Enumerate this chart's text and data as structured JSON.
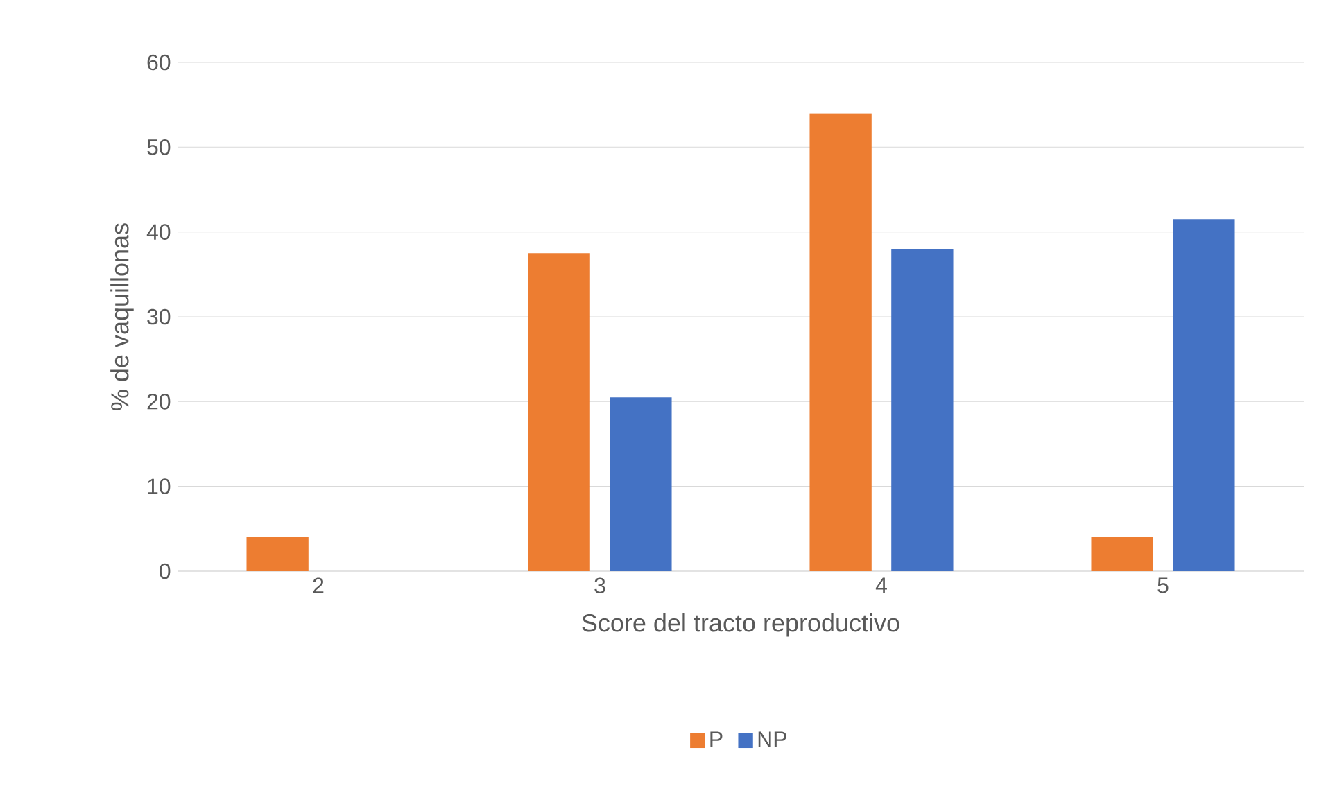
{
  "chart_data": {
    "type": "bar",
    "xlabel": "Score del tracto reproductivo",
    "ylabel": "% de vaquillonas",
    "categories": [
      "2",
      "3",
      "4",
      "5"
    ],
    "series": [
      {
        "name": "P",
        "color": "#ed7d31",
        "values": [
          4,
          37.5,
          54,
          4
        ]
      },
      {
        "name": "NP",
        "color": "#4472c4",
        "values": [
          0,
          20.5,
          38,
          41.5
        ]
      }
    ],
    "ylim": [
      0,
      60
    ],
    "yticks": [
      0,
      10,
      20,
      30,
      40,
      50,
      60
    ],
    "grid": "y",
    "legend": "bottom"
  }
}
